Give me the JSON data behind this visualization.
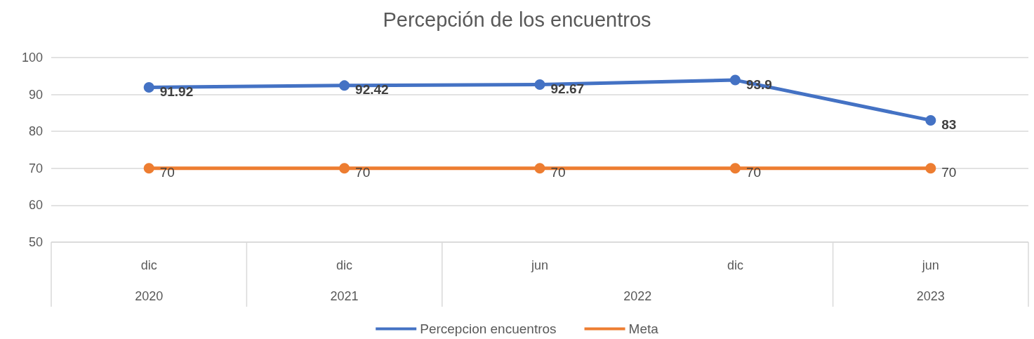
{
  "chart_data": {
    "type": "line",
    "title": "Percepción de los encuentros",
    "categories": [
      "dic",
      "dic",
      "jun",
      "dic",
      "jun"
    ],
    "series": [
      {
        "name": "Percepcion encuentros",
        "color": "#4472c4",
        "values": [
          91.92,
          92.42,
          92.67,
          93.9,
          83
        ]
      },
      {
        "name": "Meta",
        "color": "#ed7d31",
        "values": [
          70,
          70,
          70,
          70,
          70
        ]
      }
    ],
    "annotations": [
      "2020",
      "2021",
      "2022",
      "2023"
    ],
    "ylim": [
      50,
      100
    ],
    "yticks": [
      50,
      60,
      70,
      80,
      90,
      100
    ],
    "grid": "y",
    "legend": "bottom",
    "marker": "circle",
    "line_style": "solid",
    "data_labels": true
  }
}
